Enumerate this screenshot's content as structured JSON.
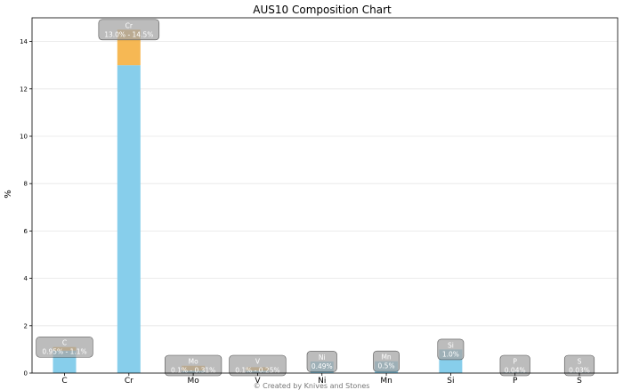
{
  "colors": {
    "bar_base": "#87ceeb",
    "bar_range": "#f5b041",
    "label_box": "#a6a6a6",
    "grid": "#e6e6e6"
  },
  "chart_data": {
    "type": "bar",
    "title": "AUS10 Composition Chart",
    "xlabel": "",
    "ylabel": "%",
    "ylim": [
      0,
      15
    ],
    "yticks": [
      0,
      2,
      4,
      6,
      8,
      10,
      12,
      14
    ],
    "grid": "horizontal",
    "categories": [
      "C",
      "Cr",
      "Mo",
      "V",
      "Ni",
      "Mn",
      "Si",
      "P",
      "S"
    ],
    "elements": [
      {
        "symbol": "C",
        "min": 0.95,
        "max": 1.1,
        "label": "0.95% - 1.1%"
      },
      {
        "symbol": "Cr",
        "min": 13.0,
        "max": 14.5,
        "label": "13.0% - 14.5%"
      },
      {
        "symbol": "Mo",
        "min": 0.1,
        "max": 0.31,
        "label": "0.1% - 0.31%"
      },
      {
        "symbol": "V",
        "min": 0.1,
        "max": 0.25,
        "label": "0.1% - 0.25%"
      },
      {
        "symbol": "Ni",
        "min": 0.49,
        "max": 0.49,
        "label": "0.49%"
      },
      {
        "symbol": "Mn",
        "min": 0.5,
        "max": 0.5,
        "label": "0.5%"
      },
      {
        "symbol": "Si",
        "min": 1.0,
        "max": 1.0,
        "label": "1.0%"
      },
      {
        "symbol": "P",
        "min": 0.04,
        "max": 0.04,
        "label": "0.04%"
      },
      {
        "symbol": "S",
        "min": 0.03,
        "max": 0.03,
        "label": "0.03%"
      }
    ]
  },
  "footer": {
    "credit": "© Created by Knives and Stones"
  }
}
